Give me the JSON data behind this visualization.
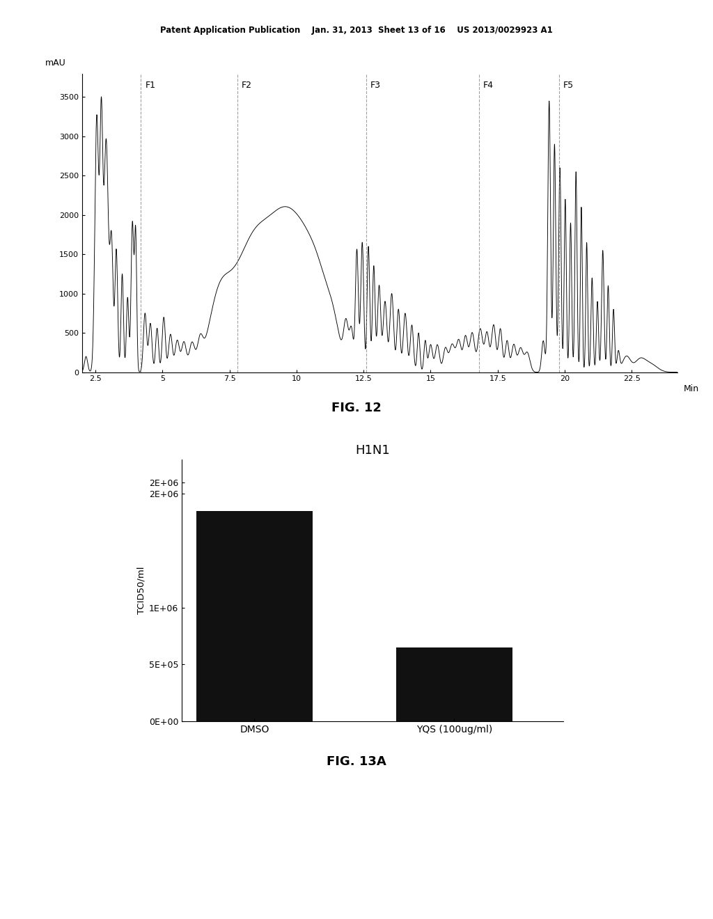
{
  "header_text": "Patent Application Publication    Jan. 31, 2013  Sheet 13 of 16    US 2013/0029923 A1",
  "fig12_title": "FIG. 12",
  "fig13a_title": "FIG. 13A",
  "chromatogram": {
    "ylabel": "mAU",
    "xlabel": "Min",
    "yticks": [
      0,
      500,
      1000,
      1500,
      2000,
      2500,
      3000,
      3500
    ],
    "xticks": [
      2.5,
      5,
      7.5,
      10,
      12.5,
      15,
      17.5,
      20,
      22.5
    ],
    "fraction_lines": [
      {
        "x": 4.2,
        "label": "F1"
      },
      {
        "x": 7.8,
        "label": "F2"
      },
      {
        "x": 12.6,
        "label": "F3"
      },
      {
        "x": 16.8,
        "label": "F4"
      },
      {
        "x": 19.8,
        "label": "F5"
      }
    ],
    "xmin": 2.0,
    "xmax": 24.2,
    "ymin": 0,
    "ymax": 3800
  },
  "bar_chart": {
    "title": "H1N1",
    "ylabel": "TCID50/ml",
    "categories": [
      "DMSO",
      "YQS (100ug/ml)"
    ],
    "values": [
      1850000,
      650000
    ],
    "bar_color": "#111111",
    "yticks": [
      0,
      500000,
      1000000,
      2000000,
      2100000
    ],
    "ytick_labels": [
      "0E+00",
      "5E+05",
      "1E+06",
      "2E+06",
      "2E+06"
    ],
    "ymax": 2300000,
    "bar_width": 0.32
  }
}
